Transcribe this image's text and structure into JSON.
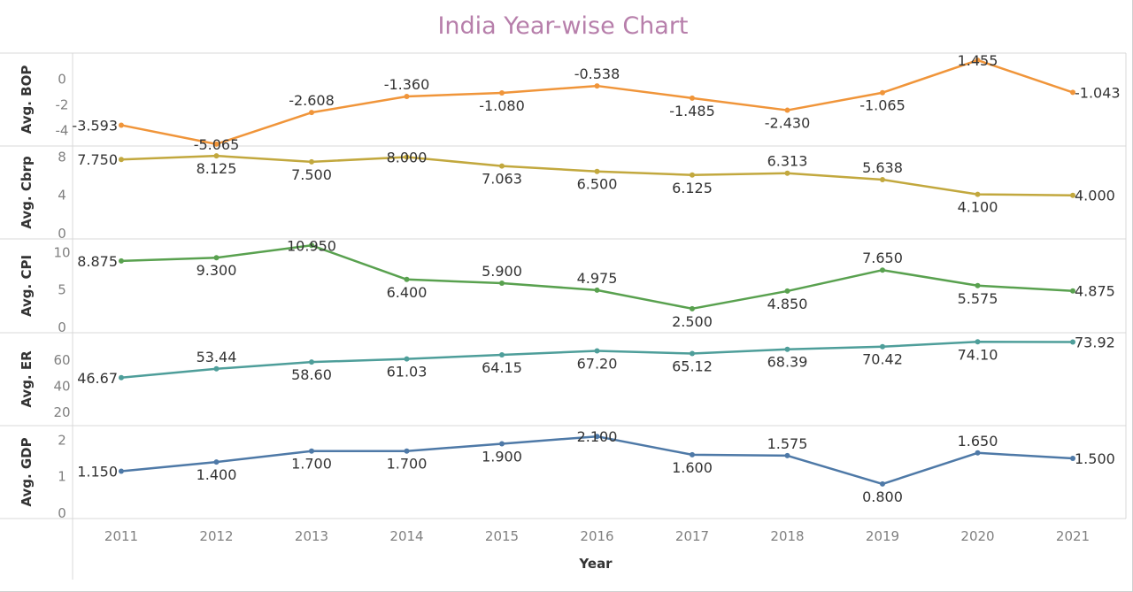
{
  "chart_data": {
    "type": "line",
    "title": "India Year-wise Chart",
    "xlabel": "Year",
    "categories": [
      "2011",
      "2012",
      "2013",
      "2014",
      "2015",
      "2016",
      "2017",
      "2018",
      "2019",
      "2020",
      "2021"
    ],
    "grid": false,
    "series": [
      {
        "name": "Avg. BOP",
        "color": "#f0953a",
        "ylim": [
          -4.8,
          1.6
        ],
        "ticks": [
          -4,
          -2,
          0
        ],
        "values": [
          -3.593,
          -5.065,
          -2.608,
          -1.36,
          -1.08,
          -0.538,
          -1.485,
          -2.43,
          -1.065,
          1.455,
          -1.043
        ],
        "labels": [
          "-3.593",
          "-5.065",
          "-2.608",
          "-1.360",
          "-1.080",
          "-0.538",
          "-1.485",
          "-2.430",
          "-1.065",
          "1.455",
          "-1.043"
        ],
        "label_pos": [
          "left",
          "center",
          "above",
          "above",
          "below",
          "above",
          "below",
          "below",
          "below",
          "center",
          "right"
        ]
      },
      {
        "name": "Avg. Cbrp",
        "color": "#c2a83e",
        "ylim": [
          0,
          8.6
        ],
        "ticks": [
          0,
          4,
          8
        ],
        "values": [
          7.75,
          8.125,
          7.5,
          8.0,
          7.063,
          6.5,
          6.125,
          6.313,
          5.638,
          4.1,
          4.0
        ],
        "labels": [
          "7.750",
          "8.125",
          "7.500",
          "8.000",
          "7.063",
          "6.500",
          "6.125",
          "6.313",
          "5.638",
          "4.100",
          "4.000"
        ],
        "label_pos": [
          "left",
          "below",
          "below",
          "center",
          "below",
          "below",
          "below",
          "above",
          "above",
          "below",
          "right"
        ]
      },
      {
        "name": "Avg. CPI",
        "color": "#59a14f",
        "ylim": [
          0,
          11.1
        ],
        "ticks": [
          0,
          5,
          10
        ],
        "values": [
          8.875,
          9.3,
          10.95,
          6.4,
          5.9,
          4.975,
          2.5,
          4.85,
          7.65,
          5.575,
          4.875
        ],
        "labels": [
          "8.875",
          "9.300",
          "10.950",
          "6.400",
          "5.900",
          "4.975",
          "2.500",
          "4.850",
          "7.650",
          "5.575",
          "4.875"
        ],
        "label_pos": [
          "left",
          "below",
          "center",
          "below",
          "above",
          "above",
          "below",
          "below",
          "above",
          "below",
          "right"
        ]
      },
      {
        "name": "Avg. ER",
        "color": "#4e9e9a",
        "ylim": [
          14,
          77
        ],
        "ticks": [
          20,
          40,
          60
        ],
        "values": [
          46.67,
          53.44,
          58.6,
          61.03,
          64.15,
          67.2,
          65.12,
          68.39,
          70.42,
          74.1,
          73.92
        ],
        "labels": [
          "46.67",
          "53.44",
          "58.60",
          "61.03",
          "64.15",
          "67.20",
          "65.12",
          "68.39",
          "70.42",
          "74.10",
          "73.92"
        ],
        "label_pos": [
          "left",
          "above",
          "below",
          "below",
          "below",
          "below",
          "below",
          "below",
          "below",
          "below",
          "right"
        ]
      },
      {
        "name": "Avg. GDP",
        "color": "#4e79a7",
        "ylim": [
          0,
          2.25
        ],
        "ticks": [
          0,
          1,
          2
        ],
        "values": [
          1.15,
          1.4,
          1.7,
          1.7,
          1.9,
          2.1,
          1.6,
          1.575,
          0.8,
          1.65,
          1.5
        ],
        "labels": [
          "1.150",
          "1.400",
          "1.700",
          "1.700",
          "1.900",
          "2.100",
          "1.600",
          "1.575",
          "0.800",
          "1.650",
          "1.500"
        ],
        "label_pos": [
          "left",
          "below",
          "below",
          "below",
          "below",
          "center",
          "below",
          "above",
          "below",
          "above",
          "right"
        ]
      }
    ]
  }
}
